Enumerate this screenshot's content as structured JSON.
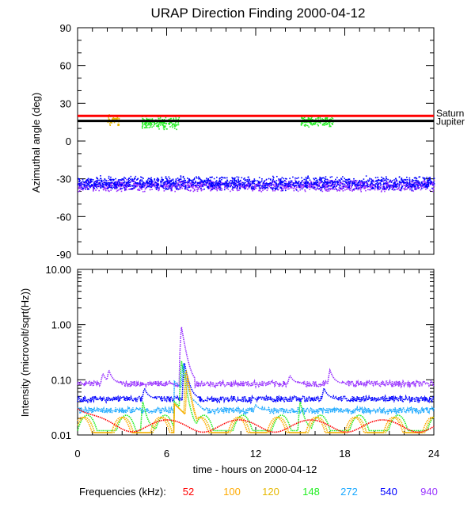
{
  "title": "URAP Direction Finding  2000-04-12",
  "legend": {
    "label": "Frequencies (kHz):",
    "entries": [
      {
        "name": "52",
        "color": "#ff0000"
      },
      {
        "name": "100",
        "color": "#ffaa00"
      },
      {
        "name": "120",
        "color": "#e6b800"
      },
      {
        "name": "148",
        "color": "#22ee22"
      },
      {
        "name": "272",
        "color": "#1aa8ff"
      },
      {
        "name": "540",
        "color": "#0000ff"
      },
      {
        "name": "940",
        "color": "#9933ff"
      }
    ]
  },
  "chart_data": [
    {
      "type": "scatter",
      "panel": "top",
      "ylabel": "Azimuthal angle (deg)",
      "xlim": [
        0,
        24
      ],
      "ylim": [
        -90,
        90
      ],
      "yticks": [
        "90",
        "60",
        "30",
        "0",
        "-30",
        "-60",
        "-90"
      ],
      "ytick_values": [
        90,
        60,
        30,
        0,
        -30,
        -60,
        -90
      ],
      "reference_lines": [
        {
          "name": "Saturn",
          "y": 20,
          "color": "#ff0000"
        },
        {
          "name": "Jupiter",
          "y": 16,
          "color": "#000000"
        }
      ],
      "clusters": [
        {
          "series": "940",
          "x_range": [
            0,
            24
          ],
          "y_center": -35,
          "y_spread": 5
        },
        {
          "series": "540",
          "x_range": [
            0,
            24
          ],
          "y_center": -33,
          "y_spread": 6
        },
        {
          "series": "148",
          "x_range": [
            15,
            17.2
          ],
          "y_center": 16,
          "y_spread": 5
        },
        {
          "series": "148",
          "x_range": [
            4.3,
            6.8
          ],
          "y_center": 15,
          "y_spread": 6
        },
        {
          "series": "120",
          "x_range": [
            2,
            2.8
          ],
          "y_center": 17,
          "y_spread": 5
        }
      ]
    },
    {
      "type": "line",
      "panel": "bottom",
      "ylabel": "Intensity (microvolt/sqrt(Hz))",
      "xlabel": "time - hours on 2000-04-12",
      "xlim": [
        0,
        24
      ],
      "ylim": [
        0.01,
        10
      ],
      "yscale": "log",
      "xticks": [
        "0",
        "6",
        "12",
        "18",
        "24"
      ],
      "xtick_values": [
        0,
        6,
        12,
        18,
        24
      ],
      "yticks": [
        "10.00",
        "1.00",
        "0.10",
        "0.01"
      ],
      "ytick_values": [
        10,
        1,
        0.1,
        0.01
      ],
      "series": [
        {
          "name": "940",
          "baseline": 0.085,
          "peaks": [
            {
              "x": 7.0,
              "y": 0.9
            },
            {
              "x": 1.7,
              "y": 0.13
            },
            {
              "x": 2.1,
              "y": 0.15
            },
            {
              "x": 17.0,
              "y": 0.15
            },
            {
              "x": 14.3,
              "y": 0.12
            }
          ]
        },
        {
          "name": "540",
          "baseline": 0.045,
          "peaks": [
            {
              "x": 7.2,
              "y": 0.2
            },
            {
              "x": 4.5,
              "y": 0.07
            },
            {
              "x": 16.6,
              "y": 0.07
            }
          ]
        },
        {
          "name": "272",
          "baseline": 0.028,
          "peaks": [
            {
              "x": 7.1,
              "y": 0.2
            },
            {
              "x": 12.0,
              "y": 0.035
            }
          ]
        },
        {
          "name": "148",
          "baseline": 0.012,
          "peaks": [
            {
              "x": 7.0,
              "y": 0.22
            },
            {
              "x": 4.4,
              "y": 0.04
            },
            {
              "x": 15.0,
              "y": 0.04
            }
          ]
        },
        {
          "name": "120",
          "baseline": 0.011,
          "peaks": [
            {
              "x": 7.3,
              "y": 0.15
            }
          ]
        },
        {
          "name": "100",
          "baseline": 0.011,
          "peaks": [
            {
              "x": 7.4,
              "y": 0.12
            }
          ]
        },
        {
          "name": "52",
          "baseline": 0.015,
          "peaks": [
            {
              "x": 0.0,
              "y": 0.03
            }
          ]
        }
      ]
    }
  ]
}
